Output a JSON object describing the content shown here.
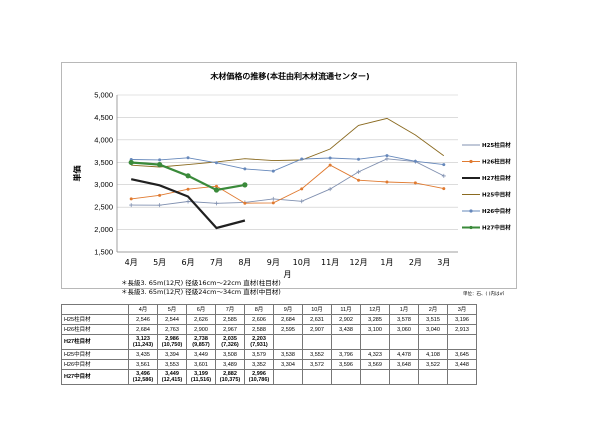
{
  "chart_data": {
    "type": "line",
    "title": "木材価格の推移(本荘由利木材流通センター)",
    "ylabel": "単価",
    "xlabel": "月",
    "categories": [
      "4月",
      "5月",
      "6月",
      "7月",
      "8月",
      "9月",
      "10月",
      "11月",
      "12月",
      "1月",
      "2月",
      "3月"
    ],
    "yticks": [
      "1,500",
      "2,000",
      "2,500",
      "3,000",
      "3,500",
      "4,000",
      "4,500",
      "5,000"
    ],
    "ylim": [
      1500,
      5000
    ],
    "grid": true,
    "legend_position": "right",
    "series": [
      {
        "name": "H25柱目材",
        "color": "#8090b0",
        "marker": "plus",
        "values": [
          2546,
          2544,
          2626,
          2585,
          2606,
          2684,
          2631,
          2902,
          3285,
          3578,
          3515,
          3196
        ]
      },
      {
        "name": "H26柱目材",
        "color": "#e07a30",
        "marker": "dot",
        "values": [
          2684,
          2763,
          2900,
          2967,
          2588,
          2595,
          2907,
          3438,
          3100,
          3060,
          3040,
          2913
        ]
      },
      {
        "name": "H27柱目材",
        "color": "#202020",
        "marker": "none",
        "values": [
          3123,
          2986,
          2738,
          2035,
          2203,
          null,
          null,
          null,
          null,
          null,
          null,
          null
        ]
      },
      {
        "name": "H25中目材",
        "color": "#8a6a20",
        "marker": "none",
        "values": [
          3435,
          3394,
          3449,
          3508,
          3579,
          3538,
          3552,
          3796,
          4323,
          4478,
          4108,
          3645
        ]
      },
      {
        "name": "H26中目材",
        "color": "#6688bb",
        "marker": "dot",
        "values": [
          3561,
          3553,
          3601,
          3489,
          3352,
          3304,
          3572,
          3596,
          3569,
          3648,
          3522,
          3448
        ]
      },
      {
        "name": "H27中目材",
        "color": "#3a8a3a",
        "marker": "dot",
        "values": [
          3496,
          3449,
          3199,
          2882,
          2996,
          null,
          null,
          null,
          null,
          null,
          null,
          null
        ]
      }
    ]
  },
  "notes": {
    "line1": "＊長級3. 65m(12尺)  径級16cm～22cm 直材(柱目材)",
    "line2": "＊長級3. 65m(12尺)  径級24cm～34cm 直材(中目材)",
    "unit": "単位：石、(  )内は㎡"
  },
  "table": {
    "header": [
      "",
      "4月",
      "5月",
      "6月",
      "7月",
      "8月",
      "9月",
      "10月",
      "11月",
      "12月",
      "1月",
      "2月",
      "3月"
    ],
    "rows": [
      {
        "label": "H25柱目材",
        "values": [
          "2,546",
          "2,544",
          "2,626",
          "2,585",
          "2,606",
          "2,684",
          "2,631",
          "2,902",
          "3,285",
          "3,578",
          "3,515",
          "3,196"
        ]
      },
      {
        "label": "H26柱目材",
        "values": [
          "2,684",
          "2,763",
          "2,900",
          "2,967",
          "2,588",
          "2,595",
          "2,907",
          "3,438",
          "3,100",
          "3,060",
          "3,040",
          "2,913"
        ]
      },
      {
        "label": "H27柱目材",
        "values": [
          "3,123",
          "2,986",
          "2,738",
          "2,035",
          "2,203",
          "",
          "",
          "",
          "",
          "",
          "",
          ""
        ],
        "sub": [
          "(11,243)",
          "(10,750)",
          "(9,857)",
          "(7,326)",
          "(7,931)",
          "",
          "",
          "",
          "",
          "",
          "",
          ""
        ]
      },
      {
        "label": "H25中目材",
        "values": [
          "3,435",
          "3,394",
          "3,449",
          "3,508",
          "3,579",
          "3,538",
          "3,552",
          "3,796",
          "4,323",
          "4,478",
          "4,108",
          "3,645"
        ]
      },
      {
        "label": "H26中目材",
        "values": [
          "3,561",
          "3,553",
          "3,601",
          "3,489",
          "3,352",
          "3,304",
          "3,572",
          "3,596",
          "3,569",
          "3,648",
          "3,522",
          "3,448"
        ]
      },
      {
        "label": "H27中目材",
        "values": [
          "3,496",
          "3,449",
          "3,199",
          "2,882",
          "2,996",
          "",
          "",
          "",
          "",
          "",
          "",
          ""
        ],
        "sub": [
          "(12,586)",
          "(12,415)",
          "(11,516)",
          "(10,375)",
          "(10,786)",
          "",
          "",
          "",
          "",
          "",
          "",
          ""
        ]
      }
    ]
  }
}
